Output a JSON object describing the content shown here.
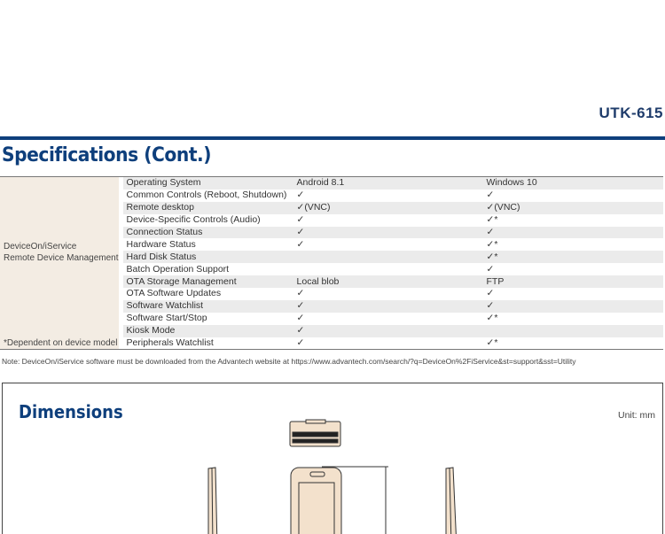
{
  "header": {
    "model": "UTK-615",
    "title": "Specifications (Cont.)"
  },
  "table": {
    "category": "DeviceOn/iService\nRemote Device Management",
    "category_line1": "DeviceOn/iService",
    "category_line2": "Remote Device Management",
    "footnote": "*Dependent on device model",
    "rows": [
      [
        "Operating System",
        "Android 8.1",
        "Windows 10"
      ],
      [
        "Common Controls (Reboot, Shutdown)",
        "✓",
        "✓"
      ],
      [
        "Remote desktop",
        "✓(VNC)",
        "✓(VNC)"
      ],
      [
        "Device-Specific Controls (Audio)",
        "✓",
        "✓*"
      ],
      [
        "Connection Status",
        "✓",
        "✓"
      ],
      [
        "Hardware Status",
        "✓",
        "✓*"
      ],
      [
        "Hard Disk Status",
        "",
        "✓*"
      ],
      [
        "Batch Operation Support",
        "",
        "✓"
      ],
      [
        "OTA Storage Management",
        "Local blob",
        "FTP"
      ],
      [
        "OTA Software Updates",
        "✓",
        "✓"
      ],
      [
        "Software Watchlist",
        "✓",
        "✓"
      ],
      [
        "Software Start/Stop",
        "✓",
        "✓*"
      ],
      [
        "Kiosk Mode",
        "✓",
        ""
      ],
      [
        "Peripherals Watchlist",
        "✓",
        "✓*"
      ]
    ]
  },
  "note": "Note: DeviceOn/iService software must be downloaded from the Advantech website at https://www.advantech.com/search/?q=DeviceOn%2FiService&st=support&sst=Utility",
  "dimensions": {
    "title": "Dimensions",
    "unit": "Unit: mm"
  },
  "colors": {
    "brand": "#0e3f7c",
    "category_bg": "#f3ece3",
    "row_alt": "#ebebeb",
    "device_fill": "#f3e1cc"
  }
}
